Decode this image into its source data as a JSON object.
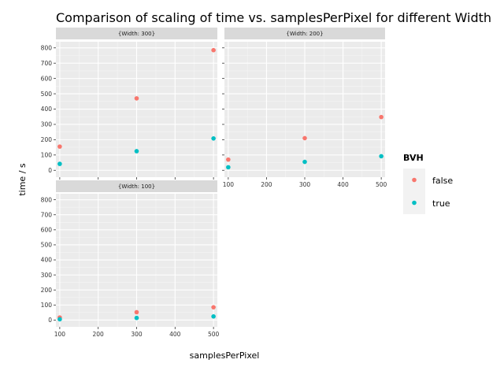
{
  "chart_data": {
    "type": "scatter",
    "title": "Comparison of scaling of time vs. samplesPerPixel for different Width",
    "xlabel": "samplesPerPixel",
    "ylabel": "time / s",
    "xlim": [
      90,
      510
    ],
    "ylim": [
      -45,
      840
    ],
    "x_ticks": [
      100,
      200,
      300,
      400,
      500
    ],
    "y_ticks": [
      0,
      100,
      200,
      300,
      400,
      500,
      600,
      700,
      800
    ],
    "legend": {
      "title": "BVH",
      "entries": [
        {
          "label": "false",
          "color": "#F8766D"
        },
        {
          "label": "true",
          "color": "#00BFC4"
        }
      ],
      "position": "right"
    },
    "panels": [
      {
        "strip": "{Width: 300}",
        "series": [
          {
            "label": "false",
            "x": [
              100,
              300,
              500
            ],
            "y": [
              155,
              470,
              785
            ]
          },
          {
            "label": "true",
            "x": [
              100,
              300,
              500
            ],
            "y": [
              42,
              125,
              208
            ]
          }
        ]
      },
      {
        "strip": "{Width: 200}",
        "series": [
          {
            "label": "false",
            "x": [
              100,
              300,
              500
            ],
            "y": [
              70,
              210,
              348
            ]
          },
          {
            "label": "true",
            "x": [
              100,
              300,
              500
            ],
            "y": [
              20,
              55,
              92
            ]
          }
        ]
      },
      {
        "strip": "{Width: 100}",
        "series": [
          {
            "label": "false",
            "x": [
              100,
              300,
              500
            ],
            "y": [
              17,
              52,
              85
            ]
          },
          {
            "label": "true",
            "x": [
              100,
              300,
              500
            ],
            "y": [
              5,
              14,
              24
            ]
          }
        ]
      }
    ],
    "grid": true,
    "background": "#EBEBEB"
  }
}
